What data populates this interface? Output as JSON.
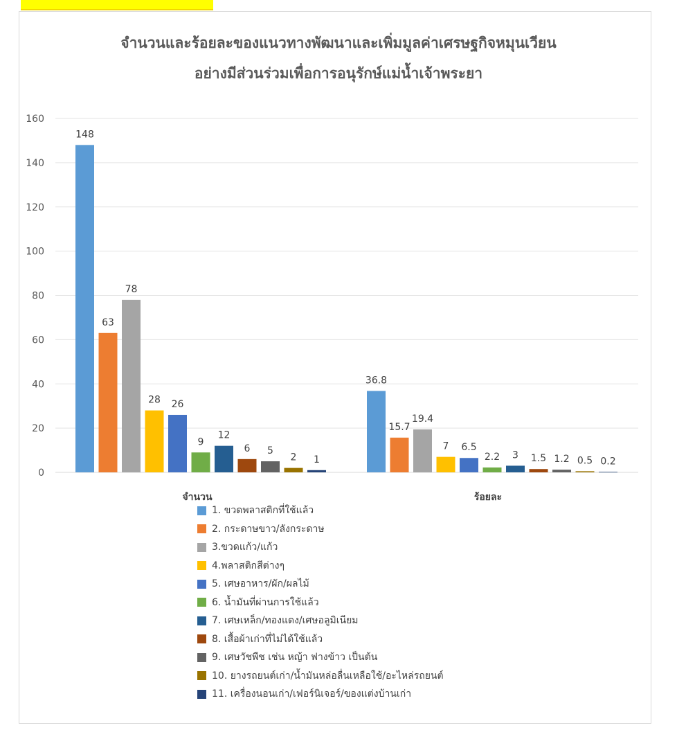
{
  "colors": [
    "#5b9bd5",
    "#ed7d31",
    "#a5a5a5",
    "#ffc000",
    "#4472c4",
    "#70ad47",
    "#255e91",
    "#9e480e",
    "#636363",
    "#997300",
    "#264478"
  ],
  "chart_data": {
    "type": "bar",
    "title_lines": [
      "จำนวนและร้อยละของแนวทางพัฒนาและเพิ่มมูลค่าเศรษฐกิจหมุนเวียน",
      "อย่างมีส่วนร่วมเพื่อการอนุรักษ์แม่น้ำเจ้าพระยา"
    ],
    "categories": [
      "จำนวน",
      "ร้อยละ"
    ],
    "ylim": [
      0,
      160
    ],
    "yticks": [
      "0",
      "20",
      "40",
      "60",
      "80",
      "100",
      "120",
      "140",
      "160"
    ],
    "grid": true,
    "legend_position": "bottom",
    "series": [
      {
        "name": "1. ขวดพลาสติกที่ใช้แล้ว",
        "values": [
          148,
          36.8
        ],
        "labels": [
          "148",
          "36.8"
        ]
      },
      {
        "name": "2. กระดาษขาว/ลังกระดาษ",
        "values": [
          63,
          15.7
        ],
        "labels": [
          "63",
          "15.7"
        ]
      },
      {
        "name": "3.ขวดแก้ว/แก้ว",
        "values": [
          78,
          19.4
        ],
        "labels": [
          "78",
          "19.4"
        ]
      },
      {
        "name": "4.พลาสติกสีต่างๆ",
        "values": [
          28,
          7
        ],
        "labels": [
          "28",
          "7"
        ]
      },
      {
        "name": "5. เศษอาหาร/ผัก/ผลไม้",
        "values": [
          26,
          6.5
        ],
        "labels": [
          "26",
          "6.5"
        ]
      },
      {
        "name": "6. น้ำมันที่ผ่านการใช้แล้ว",
        "values": [
          9,
          2.2
        ],
        "labels": [
          "9",
          "2.2"
        ]
      },
      {
        "name": "7. เศษเหล็ก/ทองแดง/เศษอลูมิเนียม",
        "values": [
          12,
          3
        ],
        "labels": [
          "12",
          "3"
        ]
      },
      {
        "name": "8. เสื้อผ้าเก่าที่ไม่ได้ใช้แล้ว",
        "values": [
          6,
          1.5
        ],
        "labels": [
          "6",
          "1.5"
        ]
      },
      {
        "name": "9. เศษวัชพืช เช่น หญ้า ฟางข้าว เป็นต้น",
        "values": [
          5,
          1.2
        ],
        "labels": [
          "5",
          "1.2"
        ]
      },
      {
        "name": "10. ยางรถยนต์เก่า/น้ำมันหล่อลื่นเหลือใช้/อะไหล่รถยนต์",
        "values": [
          2,
          0.5
        ],
        "labels": [
          "2",
          "0.5"
        ]
      },
      {
        "name": "11. เครื่องนอนเก่า/เฟอร์นิเจอร์/ของแต่งบ้านเก่า",
        "values": [
          1,
          0.2
        ],
        "labels": [
          "1",
          "0.2"
        ]
      }
    ]
  }
}
